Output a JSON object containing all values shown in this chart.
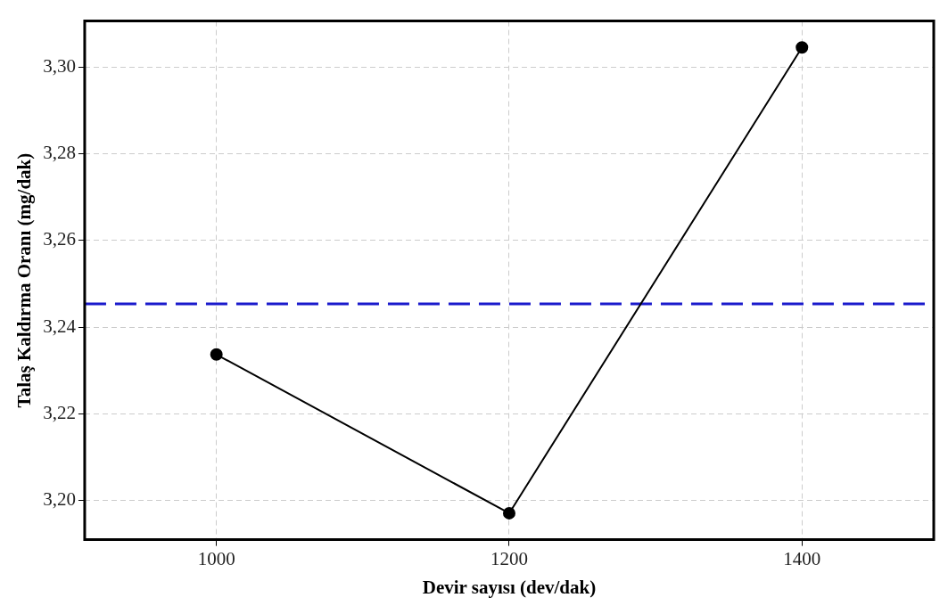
{
  "chart_data": {
    "type": "line",
    "xlabel": "Devir sayısı (dev/dak)",
    "ylabel": "Talaş Kaldırma Oranı (mg/dak)",
    "x": [
      1000,
      1200,
      1400
    ],
    "series": [
      {
        "color": "#000000",
        "values": [
          3.2337,
          3.1971,
          3.3045
        ]
      }
    ],
    "xlim": [
      910,
      1490
    ],
    "xticks": [
      1000,
      1200,
      1400
    ],
    "ylim": [
      3.191,
      3.3106
    ],
    "yticks": [
      {
        "value": 3.2,
        "label": "3,20"
      },
      {
        "value": 3.22,
        "label": "3,22"
      },
      {
        "value": 3.24,
        "label": "3,24"
      },
      {
        "value": 3.26,
        "label": "3,26"
      },
      {
        "value": 3.28,
        "label": "3,28"
      },
      {
        "value": 3.3,
        "label": "3,30"
      }
    ],
    "ref_lines": [
      {
        "axis": "y",
        "value": 3.2454,
        "color": "#1a1acc",
        "line_style": "dashed"
      }
    ],
    "grid": true,
    "marker": "circle",
    "line_style": "solid",
    "legend": false
  }
}
